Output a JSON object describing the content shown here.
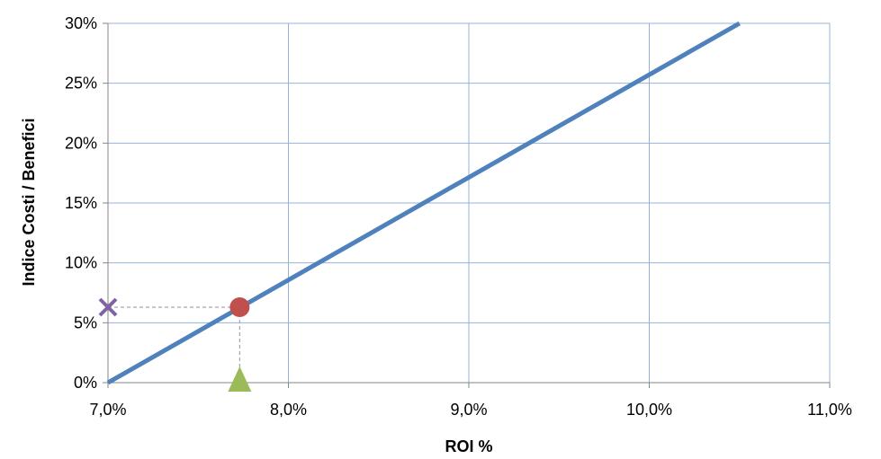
{
  "chart_data": {
    "type": "line",
    "title": "",
    "xlabel": "ROI %",
    "ylabel": "Indice Costi / Benefici",
    "xlim": [
      0.07,
      0.11
    ],
    "ylim": [
      0,
      0.3
    ],
    "x_ticks": [
      0.07,
      0.08,
      0.09,
      0.1,
      0.11
    ],
    "x_tick_labels": [
      "7,0%",
      "8,0%",
      "9,0%",
      "10,0%",
      "11,0%"
    ],
    "y_ticks": [
      0,
      0.05,
      0.1,
      0.15,
      0.2,
      0.25,
      0.3
    ],
    "y_tick_labels": [
      "0%",
      "5%",
      "10%",
      "15%",
      "20%",
      "25%",
      "30%"
    ],
    "grid": true,
    "legend": "none",
    "series": [
      {
        "style": "line",
        "color": "#4f81bd",
        "x": [
          0.07,
          0.105
        ],
        "y": [
          0.0,
          0.3
        ]
      }
    ],
    "markers": [
      {
        "shape": "circle",
        "color": "#c0504d",
        "x": 0.0773,
        "y": 0.063
      },
      {
        "shape": "cross",
        "color": "#8064a2",
        "x": 0.07,
        "y": 0.063
      },
      {
        "shape": "triangle",
        "color": "#9bbb59",
        "x": 0.0773,
        "y": 0.0
      }
    ],
    "guides": [
      {
        "style": "dashed",
        "color": "#a6a6a6",
        "from": [
          0.07,
          0.063
        ],
        "to": [
          0.0773,
          0.063
        ]
      },
      {
        "style": "dashed",
        "color": "#a6a6a6",
        "from": [
          0.0773,
          0.063
        ],
        "to": [
          0.0773,
          0.0
        ]
      }
    ],
    "colors": {
      "grid": "#95b3d7",
      "axis": "#868686"
    }
  }
}
